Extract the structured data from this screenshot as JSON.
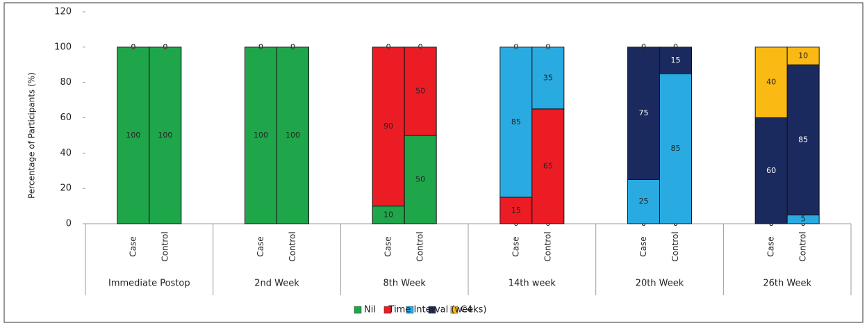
{
  "chart_data": {
    "type": "stacked-bar",
    "y_label": "Percentage of Participants (%)",
    "x_label": "Time Interval (weeks)",
    "groups": [
      "Immediate Postop",
      "2nd Week",
      "8th Week",
      "14th week",
      "20th Week",
      "26th Week"
    ],
    "categories": [
      "Case",
      "Control",
      "Case",
      "Control",
      "Case",
      "Control",
      "Case",
      "Control",
      "Case",
      "Control",
      "Case",
      "Control"
    ],
    "series": [
      {
        "name": "Nil",
        "color": "#1fa64a",
        "values": [
          100,
          100,
          100,
          100,
          10,
          50,
          0,
          0,
          0,
          0,
          0,
          0
        ]
      },
      {
        "color": "#ec1c24",
        "values": [
          0,
          0,
          0,
          0,
          90,
          50,
          15,
          65,
          0,
          0,
          0,
          0
        ]
      },
      {
        "color": "#29abe2",
        "values": [
          0,
          0,
          0,
          0,
          0,
          0,
          85,
          35,
          25,
          85,
          0,
          5
        ]
      },
      {
        "color": "#1b2a5e",
        "values": [
          0,
          0,
          0,
          0,
          0,
          0,
          0,
          0,
          75,
          15,
          60,
          85
        ]
      },
      {
        "name": "C4",
        "color": "#fbb914",
        "values": [
          0,
          0,
          0,
          0,
          0,
          0,
          0,
          0,
          0,
          0,
          40,
          10
        ]
      }
    ],
    "ylim": [
      0,
      120
    ],
    "yticks": [
      0,
      20,
      40,
      60,
      80,
      100,
      120
    ]
  }
}
